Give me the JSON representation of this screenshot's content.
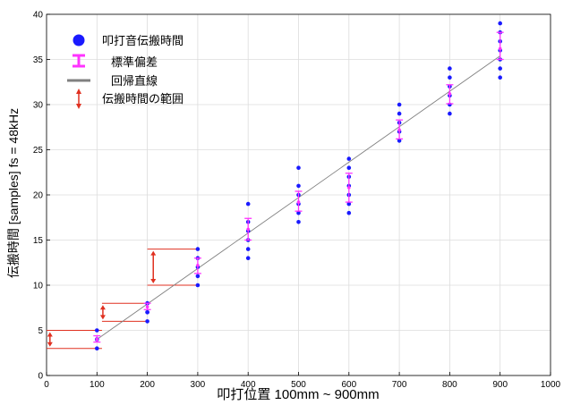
{
  "chart_data": {
    "type": "scatter",
    "title": "",
    "xlabel": "叩打位置 100mm ~ 900mm",
    "ylabel": "伝搬時間 [samples] fs = 48kHz",
    "xlim": [
      0,
      1000
    ],
    "ylim": [
      0,
      40
    ],
    "x_ticks": [
      0,
      100,
      200,
      300,
      400,
      500,
      600,
      700,
      800,
      900,
      1000
    ],
    "y_ticks": [
      0,
      5,
      10,
      15,
      20,
      25,
      30,
      35,
      40
    ],
    "grid": true,
    "legend_position": "top-left",
    "legend": [
      {
        "label": "叩打音伝搬時間",
        "symbol": "dot",
        "color": "#1a1aff"
      },
      {
        "label": "標準偏差",
        "symbol": "errorbar",
        "color": "#ff33ff"
      },
      {
        "label": "回帰直線",
        "symbol": "line",
        "color": "#808080"
      },
      {
        "label": "伝搬時間の範囲",
        "symbol": "double-arrow",
        "color": "#e03020"
      }
    ],
    "series": [
      {
        "name": "叩打音伝搬時間",
        "color": "#1a1aff",
        "points": [
          {
            "x": 100,
            "y": 3
          },
          {
            "x": 100,
            "y": 4
          },
          {
            "x": 100,
            "y": 4
          },
          {
            "x": 100,
            "y": 5
          },
          {
            "x": 200,
            "y": 6
          },
          {
            "x": 200,
            "y": 7
          },
          {
            "x": 200,
            "y": 7
          },
          {
            "x": 200,
            "y": 8
          },
          {
            "x": 200,
            "y": 8
          },
          {
            "x": 300,
            "y": 10
          },
          {
            "x": 300,
            "y": 11
          },
          {
            "x": 300,
            "y": 12
          },
          {
            "x": 300,
            "y": 13
          },
          {
            "x": 300,
            "y": 14
          },
          {
            "x": 400,
            "y": 13
          },
          {
            "x": 400,
            "y": 14
          },
          {
            "x": 400,
            "y": 15
          },
          {
            "x": 400,
            "y": 16
          },
          {
            "x": 400,
            "y": 17
          },
          {
            "x": 400,
            "y": 19
          },
          {
            "x": 500,
            "y": 17
          },
          {
            "x": 500,
            "y": 18
          },
          {
            "x": 500,
            "y": 19
          },
          {
            "x": 500,
            "y": 20
          },
          {
            "x": 500,
            "y": 21
          },
          {
            "x": 500,
            "y": 23
          },
          {
            "x": 600,
            "y": 18
          },
          {
            "x": 600,
            "y": 19
          },
          {
            "x": 600,
            "y": 20
          },
          {
            "x": 600,
            "y": 21
          },
          {
            "x": 600,
            "y": 22
          },
          {
            "x": 600,
            "y": 23
          },
          {
            "x": 600,
            "y": 24
          },
          {
            "x": 700,
            "y": 26
          },
          {
            "x": 700,
            "y": 27
          },
          {
            "x": 700,
            "y": 28
          },
          {
            "x": 700,
            "y": 29
          },
          {
            "x": 700,
            "y": 30
          },
          {
            "x": 800,
            "y": 29
          },
          {
            "x": 800,
            "y": 30
          },
          {
            "x": 800,
            "y": 31
          },
          {
            "x": 800,
            "y": 32
          },
          {
            "x": 800,
            "y": 33
          },
          {
            "x": 800,
            "y": 34
          },
          {
            "x": 900,
            "y": 33
          },
          {
            "x": 900,
            "y": 34
          },
          {
            "x": 900,
            "y": 35
          },
          {
            "x": 900,
            "y": 36
          },
          {
            "x": 900,
            "y": 37
          },
          {
            "x": 900,
            "y": 38
          },
          {
            "x": 900,
            "y": 39
          }
        ]
      }
    ],
    "error_bars": {
      "name": "標準偏差",
      "color": "#ff33ff",
      "items": [
        {
          "x": 100,
          "mean": 4.0,
          "low": 3.7,
          "high": 4.4
        },
        {
          "x": 200,
          "mean": 7.6,
          "low": 7.3,
          "high": 8.0
        },
        {
          "x": 300,
          "mean": 12.2,
          "low": 11.3,
          "high": 13.0
        },
        {
          "x": 400,
          "mean": 16.2,
          "low": 15.0,
          "high": 17.4
        },
        {
          "x": 500,
          "mean": 19.2,
          "low": 18.2,
          "high": 20.4
        },
        {
          "x": 600,
          "mean": 20.8,
          "low": 19.2,
          "high": 22.4
        },
        {
          "x": 700,
          "mean": 27.2,
          "low": 26.2,
          "high": 28.3
        },
        {
          "x": 800,
          "mean": 31.2,
          "low": 30.1,
          "high": 32.2
        },
        {
          "x": 900,
          "mean": 36.2,
          "low": 35.0,
          "high": 38.0
        }
      ]
    },
    "regression": {
      "name": "回帰直線",
      "color": "#808080",
      "x": [
        100,
        900
      ],
      "y": [
        4.0,
        35.4
      ]
    },
    "ranges": {
      "name": "伝搬時間の範囲",
      "color": "#e03020",
      "items": [
        {
          "x_start": 0,
          "x_end": 110,
          "arrow_x": 5,
          "y_low": 3,
          "y_high": 5
        },
        {
          "x_start": 110,
          "x_end": 200,
          "arrow_x": 110,
          "y_low": 6,
          "y_high": 8
        },
        {
          "x_start": 200,
          "x_end": 300,
          "arrow_x": 210,
          "y_low": 10,
          "y_high": 14
        }
      ]
    }
  }
}
